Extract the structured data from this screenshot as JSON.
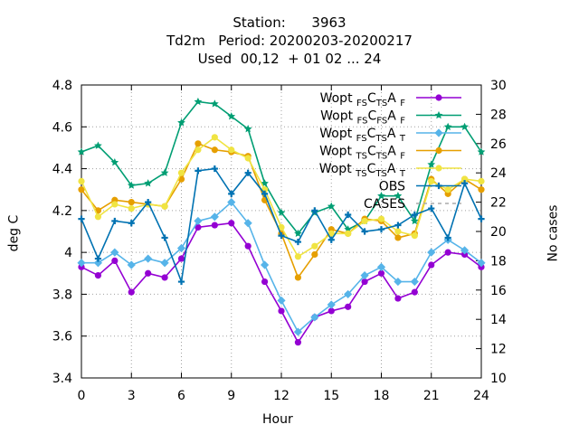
{
  "chart_data": {
    "type": "line",
    "title_lines": [
      "Station:      3963",
      "Td2m   Period: 20200203-20200217",
      "Used  00,12  + 01 02 ... 24"
    ],
    "xlabel": "Hour",
    "ylabel": "deg C",
    "y2label": "No cases",
    "xlim": [
      0,
      24
    ],
    "ylim": [
      3.4,
      4.8
    ],
    "y2lim": [
      10,
      30
    ],
    "xticks": [
      0,
      3,
      6,
      9,
      12,
      15,
      18,
      21,
      24
    ],
    "yticks": [
      "3.4",
      "3.6",
      "3.8",
      "4",
      "4.2",
      "4.4",
      "4.6",
      "4.8"
    ],
    "y2ticks": [
      "10",
      "12",
      "14",
      "16",
      "18",
      "20",
      "22",
      "24",
      "26",
      "28",
      "30"
    ],
    "grid": true,
    "legend_position": "top-right",
    "x": [
      0,
      1,
      2,
      3,
      4,
      5,
      6,
      7,
      8,
      9,
      10,
      11,
      12,
      13,
      14,
      15,
      16,
      17,
      18,
      19,
      20,
      21,
      22,
      23,
      24
    ],
    "series": [
      {
        "name": "Wopt FS CTS AF",
        "base": "Wopt",
        "s1": "FS",
        "mid": "C",
        "s2": "TS",
        "mid2": "A",
        "s3": "F",
        "color": "#9400d3",
        "marker": "circle",
        "values": [
          3.93,
          3.89,
          3.96,
          3.81,
          3.9,
          3.88,
          3.97,
          4.12,
          4.13,
          4.14,
          4.03,
          3.86,
          3.72,
          3.57,
          3.69,
          3.72,
          3.74,
          3.86,
          3.9,
          3.78,
          3.81,
          3.94,
          4.0,
          3.99,
          3.93
        ]
      },
      {
        "name": "Wopt FS CFS AF",
        "base": "Wopt",
        "s1": "FS",
        "mid": "C",
        "s2": "FS",
        "mid2": "A",
        "s3": "F",
        "color": "#009e73",
        "marker": "star",
        "values": [
          4.48,
          4.51,
          4.43,
          4.32,
          4.33,
          4.38,
          4.62,
          4.72,
          4.71,
          4.65,
          4.59,
          4.33,
          4.19,
          4.09,
          4.19,
          4.22,
          4.11,
          4.15,
          4.27,
          4.27,
          4.15,
          4.42,
          4.6,
          4.6,
          4.48
        ]
      },
      {
        "name": "Wopt FS CTS AT",
        "base": "Wopt",
        "s1": "FS",
        "mid": "C",
        "s2": "TS",
        "mid2": "A",
        "s3": "T",
        "color": "#56b4e9",
        "marker": "diamond",
        "values": [
          3.95,
          3.95,
          4.0,
          3.94,
          3.97,
          3.95,
          4.02,
          4.15,
          4.17,
          4.24,
          4.14,
          3.94,
          3.77,
          3.62,
          3.69,
          3.75,
          3.8,
          3.89,
          3.93,
          3.86,
          3.86,
          4.0,
          4.06,
          4.01,
          3.95
        ]
      },
      {
        "name": "Wopt TS CTS AF",
        "base": "Wopt",
        "s1": "TS",
        "mid": "C",
        "s2": "TS",
        "mid2": "A",
        "s3": "F",
        "color": "#e69f00",
        "marker": "circle",
        "values": [
          4.3,
          4.2,
          4.25,
          4.24,
          4.23,
          4.22,
          4.35,
          4.52,
          4.49,
          4.48,
          4.46,
          4.25,
          4.09,
          3.88,
          3.99,
          4.11,
          4.09,
          4.16,
          4.15,
          4.07,
          4.09,
          4.35,
          4.28,
          4.35,
          4.3
        ]
      },
      {
        "name": "Wopt TS CTS AT",
        "base": "Wopt",
        "s1": "TS",
        "mid": "C",
        "s2": "TS",
        "mid2": "A",
        "s3": "T",
        "color": "#f0e442",
        "marker": "circle",
        "values": [
          4.34,
          4.17,
          4.23,
          4.21,
          4.23,
          4.22,
          4.38,
          4.49,
          4.55,
          4.49,
          4.45,
          4.3,
          4.12,
          3.98,
          4.03,
          4.09,
          4.09,
          4.15,
          4.16,
          4.1,
          4.08,
          4.34,
          4.3,
          4.35,
          4.34
        ]
      },
      {
        "name": "OBS",
        "base": "OBS",
        "color": "#0072b2",
        "marker": "plus",
        "values": [
          4.16,
          3.97,
          4.15,
          4.14,
          4.24,
          4.07,
          3.86,
          4.39,
          4.4,
          4.28,
          4.38,
          4.28,
          4.08,
          4.05,
          4.2,
          4.06,
          4.18,
          4.1,
          4.11,
          4.13,
          4.18,
          4.21,
          4.07,
          4.33,
          4.16
        ]
      }
    ],
    "cases": {
      "name": "CASES",
      "axis": "y2",
      "color": "#aaaaaa",
      "style": "dashed",
      "values": []
    }
  }
}
